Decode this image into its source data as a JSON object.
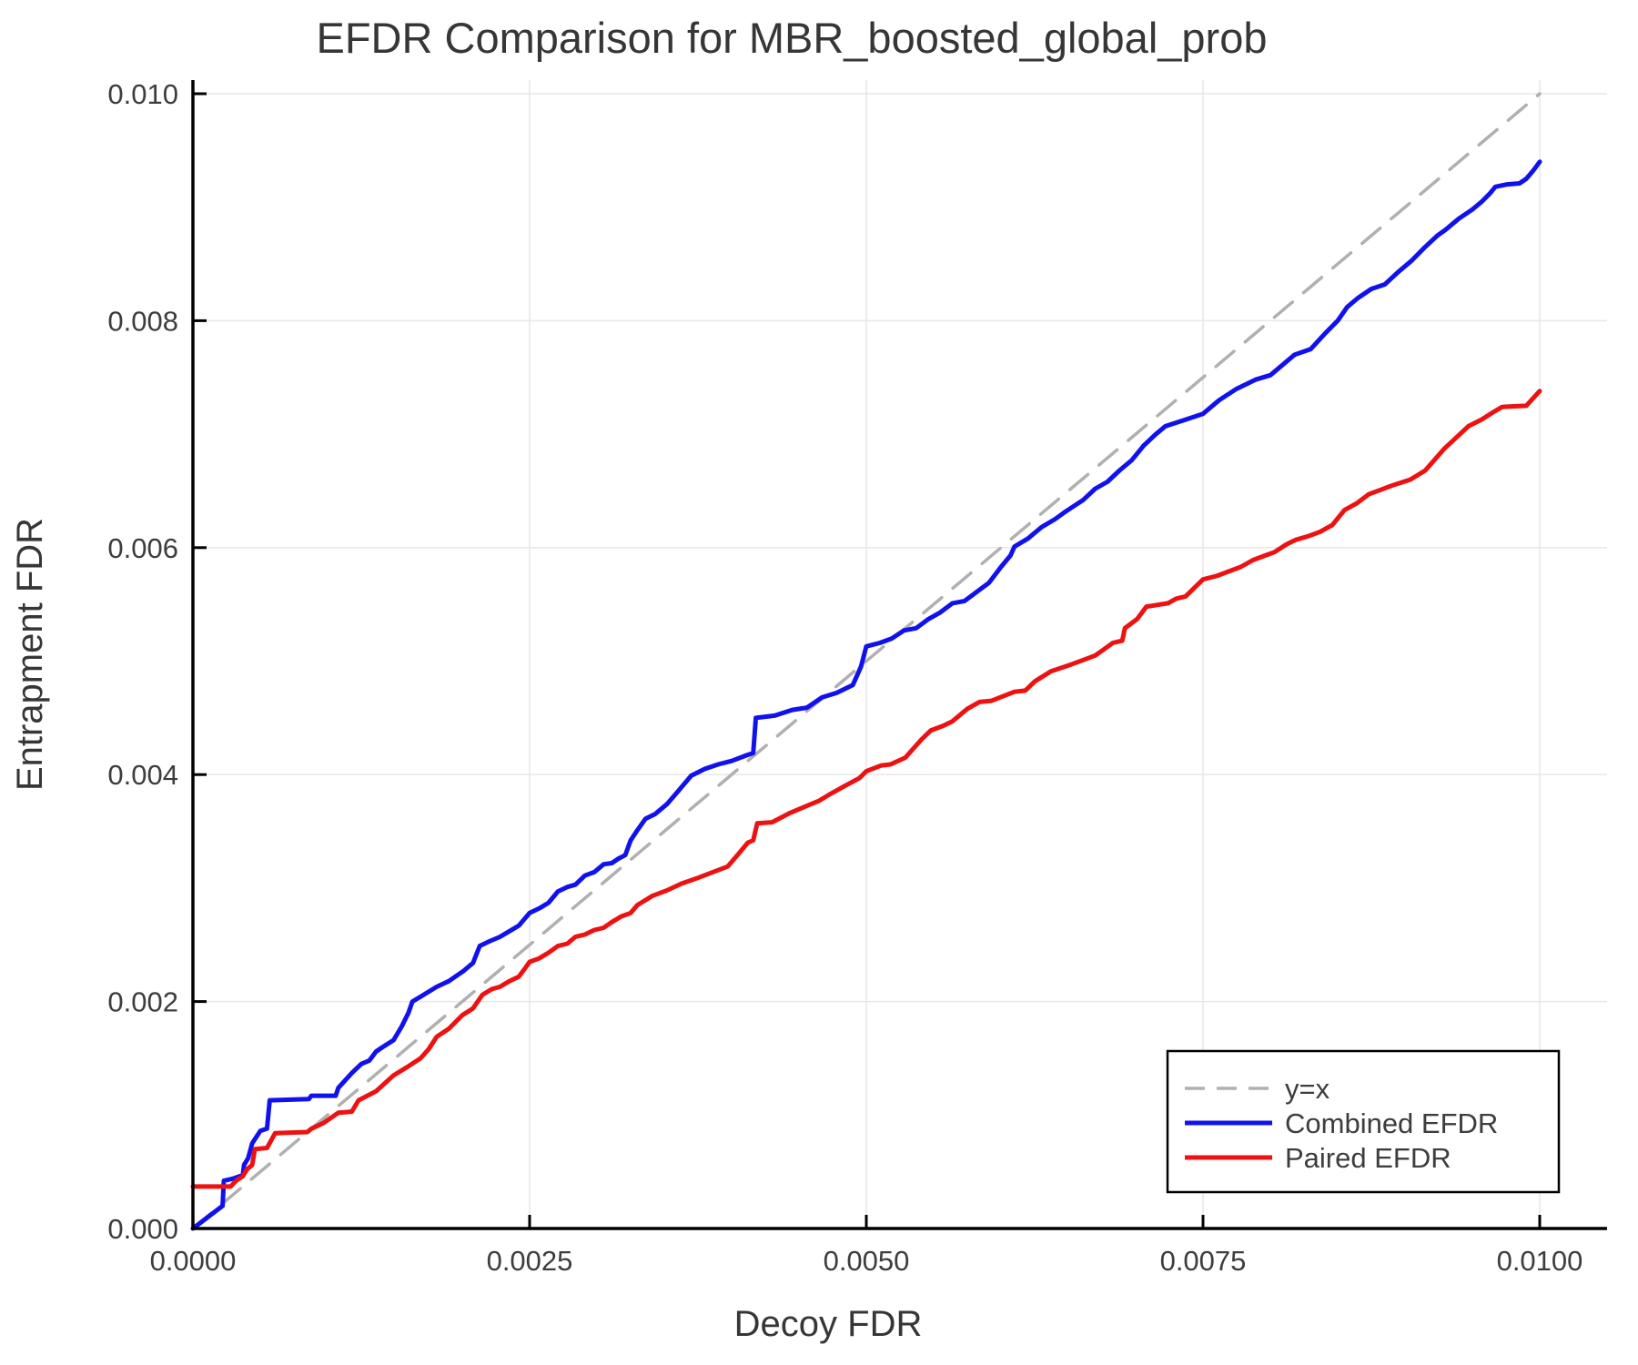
{
  "title": "EFDR Comparison for MBR_boosted_global_prob",
  "colors": {
    "background": "#FFFFFF",
    "axis": "#000000",
    "grid": "#E7E7E7",
    "text": "#3D3D3D",
    "identity_line": "#B0B0B0",
    "combined_efdr": "#1111EE",
    "paired_efdr": "#EE1111"
  },
  "chart_data": {
    "type": "line",
    "title": "EFDR Comparison for MBR_boosted_global_prob",
    "xlabel": "Decoy FDR",
    "ylabel": "Entrapment FDR",
    "xlim": [
      0.0,
      0.01
    ],
    "ylim": [
      0.0,
      0.01
    ],
    "grid": true,
    "x_ticks": {
      "values": [
        0.0,
        0.0025,
        0.005,
        0.0075,
        0.01
      ],
      "labels": [
        "0.0000",
        "0.0025",
        "0.0050",
        "0.0075",
        "0.0100"
      ]
    },
    "y_ticks": {
      "values": [
        0.0,
        0.002,
        0.004,
        0.006,
        0.008,
        0.01
      ],
      "labels": [
        "0.000",
        "0.002",
        "0.004",
        "0.006",
        "0.008",
        "0.010"
      ]
    },
    "legend": {
      "position": "bottom-right",
      "entries": [
        {
          "label": "y=x",
          "style": "dashed",
          "color": "#B0B0B0"
        },
        {
          "label": "Combined EFDR",
          "style": "solid",
          "color": "#1111EE"
        },
        {
          "label": "Paired EFDR",
          "style": "solid",
          "color": "#EE1111"
        }
      ]
    },
    "series": [
      {
        "name": "y=x",
        "style": "dashed",
        "color": "#B0B0B0",
        "width": 3.5,
        "points": [
          [
            0.0,
            0.0
          ],
          [
            0.01,
            0.01
          ]
        ]
      },
      {
        "name": "Combined EFDR",
        "style": "solid",
        "color": "#1111EE",
        "width": 5,
        "points": [
          [
            0.0,
            0.0
          ],
          [
            0.00022,
            0.0002
          ],
          [
            0.00023,
            0.00042
          ],
          [
            0.0003,
            0.00044
          ],
          [
            0.00037,
            0.00047
          ],
          [
            0.00038,
            0.00056
          ],
          [
            0.00041,
            0.00062
          ],
          [
            0.00044,
            0.00075
          ],
          [
            0.0005,
            0.00086
          ],
          [
            0.00055,
            0.00088
          ],
          [
            0.00057,
            0.00113
          ],
          [
            0.00086,
            0.00114
          ],
          [
            0.00088,
            0.00117
          ],
          [
            0.00106,
            0.00117
          ],
          [
            0.00108,
            0.00124
          ],
          [
            0.00118,
            0.00137
          ],
          [
            0.00125,
            0.00145
          ],
          [
            0.00131,
            0.00148
          ],
          [
            0.00136,
            0.00156
          ],
          [
            0.00141,
            0.0016
          ],
          [
            0.00149,
            0.00166
          ],
          [
            0.00155,
            0.00178
          ],
          [
            0.0016,
            0.0019
          ],
          [
            0.00163,
            0.002
          ],
          [
            0.0017,
            0.00205
          ],
          [
            0.00181,
            0.00213
          ],
          [
            0.0019,
            0.00218
          ],
          [
            0.00201,
            0.00227
          ],
          [
            0.00208,
            0.00234
          ],
          [
            0.00213,
            0.00249
          ],
          [
            0.0022,
            0.00253
          ],
          [
            0.00228,
            0.00257
          ],
          [
            0.00235,
            0.00262
          ],
          [
            0.00242,
            0.00267
          ],
          [
            0.0025,
            0.00278
          ],
          [
            0.00257,
            0.00282
          ],
          [
            0.00264,
            0.00287
          ],
          [
            0.00271,
            0.00297
          ],
          [
            0.00278,
            0.00301
          ],
          [
            0.00284,
            0.00303
          ],
          [
            0.00291,
            0.00311
          ],
          [
            0.00298,
            0.00314
          ],
          [
            0.00305,
            0.00321
          ],
          [
            0.00311,
            0.00322
          ],
          [
            0.00316,
            0.00326
          ],
          [
            0.00321,
            0.00329
          ],
          [
            0.00325,
            0.00342
          ],
          [
            0.0033,
            0.00351
          ],
          [
            0.00336,
            0.00361
          ],
          [
            0.00343,
            0.00365
          ],
          [
            0.00352,
            0.00374
          ],
          [
            0.0036,
            0.00385
          ],
          [
            0.0037,
            0.00399
          ],
          [
            0.0038,
            0.00405
          ],
          [
            0.0039,
            0.00409
          ],
          [
            0.004,
            0.00412
          ],
          [
            0.00411,
            0.00417
          ],
          [
            0.00416,
            0.00419
          ],
          [
            0.00418,
            0.0045
          ],
          [
            0.00432,
            0.00452
          ],
          [
            0.00445,
            0.00457
          ],
          [
            0.00456,
            0.00459
          ],
          [
            0.00467,
            0.00468
          ],
          [
            0.00478,
            0.00472
          ],
          [
            0.0049,
            0.00479
          ],
          [
            0.00496,
            0.00495
          ],
          [
            0.005,
            0.00513
          ],
          [
            0.0051,
            0.00516
          ],
          [
            0.00519,
            0.0052
          ],
          [
            0.00528,
            0.00527
          ],
          [
            0.00537,
            0.00529
          ],
          [
            0.00546,
            0.00537
          ],
          [
            0.00555,
            0.00543
          ],
          [
            0.00564,
            0.00551
          ],
          [
            0.00573,
            0.00553
          ],
          [
            0.00582,
            0.00561
          ],
          [
            0.00591,
            0.00569
          ],
          [
            0.006,
            0.00583
          ],
          [
            0.00607,
            0.00593
          ],
          [
            0.0061,
            0.00601
          ],
          [
            0.0062,
            0.00608
          ],
          [
            0.0063,
            0.00618
          ],
          [
            0.0064,
            0.00625
          ],
          [
            0.00647,
            0.00631
          ],
          [
            0.00661,
            0.00642
          ],
          [
            0.0067,
            0.00652
          ],
          [
            0.00679,
            0.00658
          ],
          [
            0.00688,
            0.00668
          ],
          [
            0.00697,
            0.00677
          ],
          [
            0.00706,
            0.0069
          ],
          [
            0.00715,
            0.007
          ],
          [
            0.00722,
            0.00707
          ],
          [
            0.00735,
            0.00712
          ],
          [
            0.0075,
            0.00718
          ],
          [
            0.00762,
            0.0073
          ],
          [
            0.00775,
            0.0074
          ],
          [
            0.00789,
            0.00748
          ],
          [
            0.008,
            0.00752
          ],
          [
            0.0081,
            0.00762
          ],
          [
            0.00818,
            0.0077
          ],
          [
            0.0083,
            0.00775
          ],
          [
            0.0084,
            0.00788
          ],
          [
            0.0085,
            0.008
          ],
          [
            0.00857,
            0.00812
          ],
          [
            0.00865,
            0.0082
          ],
          [
            0.00875,
            0.00828
          ],
          [
            0.00885,
            0.00832
          ],
          [
            0.00895,
            0.00843
          ],
          [
            0.00905,
            0.00853
          ],
          [
            0.00915,
            0.00865
          ],
          [
            0.00924,
            0.00875
          ],
          [
            0.0093,
            0.0088
          ],
          [
            0.0094,
            0.0089
          ],
          [
            0.0095,
            0.00898
          ],
          [
            0.00957,
            0.00905
          ],
          [
            0.00963,
            0.00912
          ],
          [
            0.00967,
            0.00918
          ],
          [
            0.00975,
            0.0092
          ],
          [
            0.00985,
            0.00921
          ],
          [
            0.0099,
            0.00925
          ],
          [
            0.00995,
            0.00932
          ],
          [
            0.01,
            0.0094
          ]
        ]
      },
      {
        "name": "Paired EFDR",
        "style": "solid",
        "color": "#EE1111",
        "width": 5,
        "points": [
          [
            0.0,
            0.00037
          ],
          [
            0.00028,
            0.00037
          ],
          [
            0.00032,
            0.00042
          ],
          [
            0.00037,
            0.00046
          ],
          [
            0.0004,
            0.00052
          ],
          [
            0.00044,
            0.00056
          ],
          [
            0.00046,
            0.0007
          ],
          [
            0.00055,
            0.00071
          ],
          [
            0.00061,
            0.00084
          ],
          [
            0.00085,
            0.00085
          ],
          [
            0.00088,
            0.00088
          ],
          [
            0.00097,
            0.00093
          ],
          [
            0.00108,
            0.00102
          ],
          [
            0.00118,
            0.00103
          ],
          [
            0.00123,
            0.00113
          ],
          [
            0.00136,
            0.00121
          ],
          [
            0.00149,
            0.00135
          ],
          [
            0.0016,
            0.00143
          ],
          [
            0.00169,
            0.0015
          ],
          [
            0.00175,
            0.00158
          ],
          [
            0.00181,
            0.00169
          ],
          [
            0.0019,
            0.00176
          ],
          [
            0.002,
            0.00188
          ],
          [
            0.00208,
            0.00194
          ],
          [
            0.00215,
            0.00206
          ],
          [
            0.00222,
            0.00211
          ],
          [
            0.00228,
            0.00213
          ],
          [
            0.00235,
            0.00218
          ],
          [
            0.00242,
            0.00222
          ],
          [
            0.00247,
            0.0023
          ],
          [
            0.0025,
            0.00235
          ],
          [
            0.00257,
            0.00238
          ],
          [
            0.00264,
            0.00243
          ],
          [
            0.00271,
            0.00249
          ],
          [
            0.00278,
            0.00251
          ],
          [
            0.00284,
            0.00257
          ],
          [
            0.00291,
            0.00259
          ],
          [
            0.00298,
            0.00263
          ],
          [
            0.00305,
            0.00265
          ],
          [
            0.00311,
            0.0027
          ],
          [
            0.00318,
            0.00275
          ],
          [
            0.00325,
            0.00278
          ],
          [
            0.0033,
            0.00285
          ],
          [
            0.00341,
            0.00293
          ],
          [
            0.00352,
            0.00298
          ],
          [
            0.00363,
            0.00304
          ],
          [
            0.00375,
            0.00309
          ],
          [
            0.00386,
            0.00314
          ],
          [
            0.00397,
            0.00319
          ],
          [
            0.00405,
            0.0033
          ],
          [
            0.00412,
            0.0034
          ],
          [
            0.00416,
            0.00342
          ],
          [
            0.00419,
            0.00357
          ],
          [
            0.0043,
            0.00358
          ],
          [
            0.00443,
            0.00366
          ],
          [
            0.00455,
            0.00372
          ],
          [
            0.00465,
            0.00377
          ],
          [
            0.00472,
            0.00382
          ],
          [
            0.00484,
            0.0039
          ],
          [
            0.00495,
            0.00397
          ],
          [
            0.005,
            0.00403
          ],
          [
            0.00511,
            0.00408
          ],
          [
            0.00518,
            0.00409
          ],
          [
            0.00529,
            0.00415
          ],
          [
            0.00541,
            0.00431
          ],
          [
            0.00548,
            0.00439
          ],
          [
            0.00557,
            0.00443
          ],
          [
            0.00564,
            0.00447
          ],
          [
            0.00575,
            0.00458
          ],
          [
            0.00584,
            0.00464
          ],
          [
            0.00593,
            0.00465
          ],
          [
            0.0061,
            0.00473
          ],
          [
            0.00618,
            0.00474
          ],
          [
            0.00625,
            0.00482
          ],
          [
            0.00637,
            0.00491
          ],
          [
            0.00652,
            0.00497
          ],
          [
            0.00661,
            0.00501
          ],
          [
            0.0067,
            0.00505
          ],
          [
            0.00676,
            0.0051
          ],
          [
            0.00683,
            0.00516
          ],
          [
            0.0069,
            0.00518
          ],
          [
            0.00692,
            0.00529
          ],
          [
            0.00701,
            0.00537
          ],
          [
            0.00708,
            0.00548
          ],
          [
            0.00724,
            0.00551
          ],
          [
            0.0073,
            0.00555
          ],
          [
            0.00737,
            0.00557
          ],
          [
            0.0075,
            0.00572
          ],
          [
            0.0076,
            0.00575
          ],
          [
            0.00769,
            0.00579
          ],
          [
            0.00778,
            0.00583
          ],
          [
            0.00787,
            0.00589
          ],
          [
            0.00796,
            0.00593
          ],
          [
            0.00803,
            0.00596
          ],
          [
            0.00812,
            0.00603
          ],
          [
            0.00819,
            0.00607
          ],
          [
            0.00828,
            0.0061
          ],
          [
            0.00837,
            0.00614
          ],
          [
            0.00846,
            0.0062
          ],
          [
            0.00855,
            0.00633
          ],
          [
            0.00864,
            0.00639
          ],
          [
            0.00873,
            0.00647
          ],
          [
            0.00882,
            0.00651
          ],
          [
            0.00891,
            0.00655
          ],
          [
            0.00904,
            0.0066
          ],
          [
            0.00915,
            0.00668
          ],
          [
            0.00929,
            0.00687
          ],
          [
            0.00947,
            0.00707
          ],
          [
            0.00957,
            0.00713
          ],
          [
            0.00965,
            0.00719
          ],
          [
            0.00972,
            0.00724
          ],
          [
            0.0099,
            0.00725
          ],
          [
            0.01,
            0.00738
          ]
        ]
      }
    ]
  }
}
